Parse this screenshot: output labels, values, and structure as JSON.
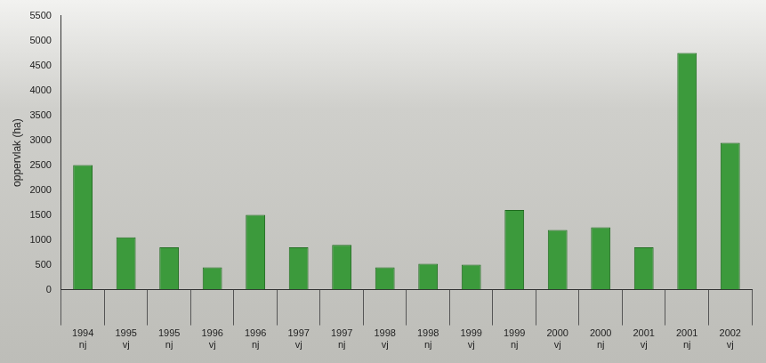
{
  "chart_data": {
    "type": "bar",
    "y_label": "oppervlak (ha)",
    "categories": [
      [
        "1994",
        "nj"
      ],
      [
        "1995",
        "vj"
      ],
      [
        "1995",
        "nj"
      ],
      [
        "1996",
        "vj"
      ],
      [
        "1996",
        "nj"
      ],
      [
        "1997",
        "vj"
      ],
      [
        "1997",
        "nj"
      ],
      [
        "1998",
        "vj"
      ],
      [
        "1998",
        "nj"
      ],
      [
        "1999",
        "vj"
      ],
      [
        "1999",
        "nj"
      ],
      [
        "2000",
        "vj"
      ],
      [
        "2000",
        "nj"
      ],
      [
        "2001",
        "vj"
      ],
      [
        "2001",
        "nj"
      ],
      [
        "2002",
        "vj"
      ]
    ],
    "values": [
      2500,
      1050,
      850,
      450,
      1500,
      850,
      900,
      450,
      520,
      500,
      1600,
      1200,
      1250,
      850,
      4750,
      2950
    ],
    "color": "#3c9a3c",
    "ylim": [
      0,
      5500
    ],
    "yticks": [
      0,
      500,
      1000,
      1500,
      2000,
      2500,
      3000,
      3500,
      4000,
      4500,
      5000,
      5500
    ],
    "grid": false
  }
}
